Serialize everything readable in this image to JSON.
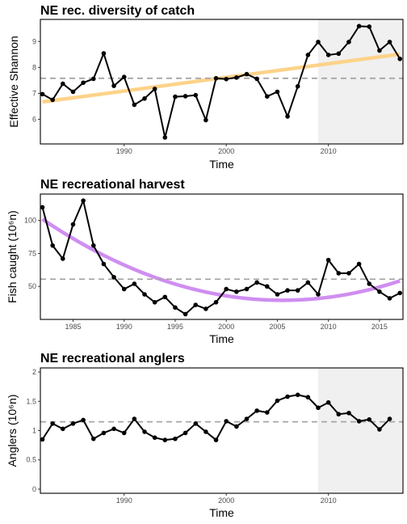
{
  "chart_data": [
    {
      "type": "line",
      "title": "NE rec. diversity of catch",
      "xlabel": "Time",
      "ylabel": "Effective Shannon",
      "xlim": [
        1981.8,
        2017.3
      ],
      "ylim": [
        5.05,
        9.85
      ],
      "xticks": [
        1990,
        2000,
        2010
      ],
      "yticks": [
        6,
        7,
        8,
        9
      ],
      "shade_from": 2009,
      "reference_line": 7.58,
      "trend": {
        "type": "linear",
        "from": [
          1982,
          6.67
        ],
        "to": [
          2017,
          8.51
        ],
        "color": "#fdd38a"
      },
      "x": [
        1982,
        1983,
        1984,
        1985,
        1986,
        1987,
        1988,
        1989,
        1990,
        1991,
        1992,
        1993,
        1994,
        1995,
        1996,
        1997,
        1998,
        1999,
        2000,
        2001,
        2002,
        2003,
        2004,
        2005,
        2006,
        2007,
        2008,
        2009,
        2010,
        2011,
        2012,
        2013,
        2014,
        2015,
        2016,
        2017
      ],
      "values": [
        6.97,
        6.75,
        7.37,
        7.06,
        7.41,
        7.56,
        8.54,
        7.29,
        7.63,
        6.56,
        6.8,
        7.17,
        5.3,
        6.87,
        6.89,
        6.93,
        5.97,
        7.58,
        7.55,
        7.61,
        7.74,
        7.56,
        6.88,
        7.06,
        6.11,
        7.27,
        8.48,
        8.98,
        8.48,
        8.53,
        8.98,
        9.59,
        9.57,
        8.65,
        8.98,
        8.33
      ]
    },
    {
      "type": "line",
      "title": "NE recreational harvest",
      "xlabel": "Time",
      "ylabel": "Fish caught (10⁶n)",
      "xlim": [
        1981.8,
        2017.3
      ],
      "ylim": [
        25,
        120
      ],
      "xticks": [
        1985,
        1990,
        1995,
        2000,
        2005,
        2010,
        2015
      ],
      "yticks": [
        50,
        75,
        100
      ],
      "shade_from": null,
      "reference_line": 55.5,
      "trend": {
        "type": "quadratic",
        "vertex": [
          2005.5,
          39.5
        ],
        "at_start": 101,
        "color": "#cf8ef0"
      },
      "x": [
        1982,
        1983,
        1984,
        1985,
        1986,
        1987,
        1988,
        1989,
        1990,
        1991,
        1992,
        1993,
        1994,
        1995,
        1996,
        1997,
        1998,
        1999,
        2000,
        2001,
        2002,
        2003,
        2004,
        2005,
        2006,
        2007,
        2008,
        2009,
        2010,
        2011,
        2012,
        2013,
        2014,
        2015,
        2016,
        2017
      ],
      "values": [
        110,
        81,
        71,
        97,
        115,
        81,
        67,
        57,
        48,
        52,
        44,
        38,
        42,
        34,
        29,
        36,
        33,
        38,
        48,
        46,
        48,
        53,
        50,
        44,
        47,
        47,
        53,
        44,
        70,
        60,
        60,
        67,
        52,
        46,
        41,
        45
      ]
    },
    {
      "type": "line",
      "title": "NE recreational anglers",
      "xlabel": "Time",
      "ylabel": "Anglers (10⁶n)",
      "xlim": [
        1981.8,
        2017.3
      ],
      "ylim": [
        -0.07,
        2.07
      ],
      "xticks": [
        1990,
        2000,
        2010
      ],
      "yticks": [
        0,
        0.5,
        1,
        1.5,
        2
      ],
      "ytick_labels": [
        "0",
        "0.5",
        "1",
        "1.5",
        "2"
      ],
      "shade_from": 2009,
      "reference_line": 1.15,
      "trend": null,
      "x": [
        1982,
        1983,
        1984,
        1985,
        1986,
        1987,
        1988,
        1989,
        1990,
        1991,
        1992,
        1993,
        1994,
        1995,
        1996,
        1997,
        1998,
        1999,
        2000,
        2001,
        2002,
        2003,
        2004,
        2005,
        2006,
        2007,
        2008,
        2009,
        2010,
        2011,
        2012,
        2013,
        2014,
        2015,
        2016
      ],
      "values": [
        0.85,
        1.12,
        1.03,
        1.12,
        1.18,
        0.86,
        0.96,
        1.03,
        0.96,
        1.2,
        0.98,
        0.88,
        0.84,
        0.86,
        0.96,
        1.12,
        0.98,
        0.84,
        1.16,
        1.07,
        1.2,
        1.34,
        1.31,
        1.51,
        1.58,
        1.61,
        1.57,
        1.39,
        1.48,
        1.28,
        1.3,
        1.16,
        1.19,
        1.02,
        1.2
      ]
    }
  ]
}
